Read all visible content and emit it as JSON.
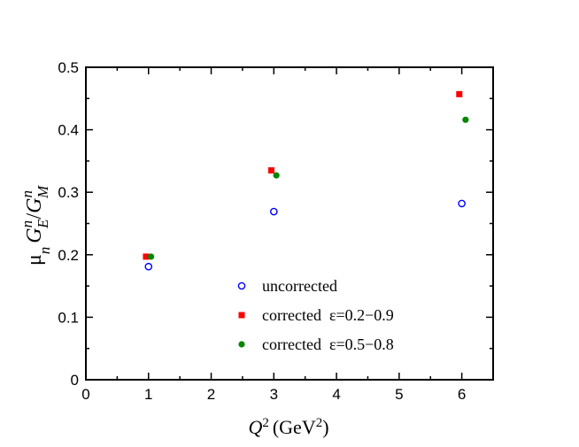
{
  "chart_data": {
    "type": "scatter",
    "xlabel": {
      "base": "Q",
      "sup": "2",
      "unit_open": "(GeV",
      "unit_sup": "2",
      "unit_close": ")"
    },
    "ylabel": {
      "mu": "μ",
      "mu_sub": "n",
      "ge": "G",
      "ge_sup": "n",
      "ge_sub": "E",
      "slash": "/",
      "gm": "G",
      "gm_sup": "n",
      "gm_sub": "M"
    },
    "xlim": [
      0,
      6.5
    ],
    "ylim": [
      0,
      0.5
    ],
    "x_ticks": [
      0,
      1,
      2,
      3,
      4,
      5,
      6
    ],
    "y_ticks": [
      0,
      0.1,
      0.2,
      0.3,
      0.4,
      0.5
    ],
    "x_tick_labels": [
      "0",
      "1",
      "2",
      "3",
      "4",
      "5",
      "6"
    ],
    "y_tick_labels": [
      "0",
      "0.1",
      "0.2",
      "0.3",
      "0.4",
      "0.5"
    ],
    "legend_position": "bottom-center",
    "series": [
      {
        "name": "uncorrected",
        "marker": "open-circle",
        "color": "#0000ff",
        "points": [
          [
            1.0,
            0.181
          ],
          [
            3.0,
            0.269
          ],
          [
            6.0,
            0.282
          ]
        ]
      },
      {
        "name": "corrected  ε=0.2−0.9",
        "marker": "filled-square",
        "color": "#ff0000",
        "points": [
          [
            0.96,
            0.197
          ],
          [
            2.96,
            0.335
          ],
          [
            5.96,
            0.457
          ]
        ]
      },
      {
        "name": "corrected  ε=0.5−0.8",
        "marker": "filled-circle",
        "color": "#008800",
        "points": [
          [
            1.04,
            0.197
          ],
          [
            3.04,
            0.327
          ],
          [
            6.06,
            0.416
          ]
        ]
      }
    ]
  }
}
